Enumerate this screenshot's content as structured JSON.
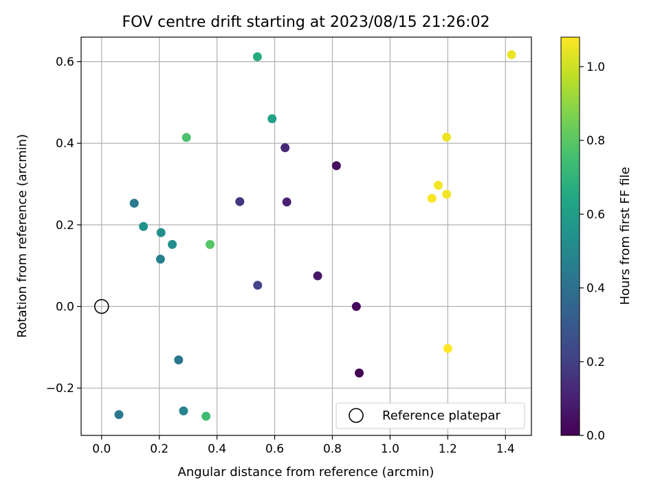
{
  "chart_data": {
    "type": "scatter",
    "title": "FOV centre drift starting at 2023/08/15 21:26:02",
    "xlabel": "Angular distance from reference (arcmin)",
    "ylabel": "Rotation from reference (arcmin)",
    "xlim": [
      -0.071,
      1.49
    ],
    "ylim": [
      -0.316,
      0.66
    ],
    "xticks": [
      0.0,
      0.2,
      0.4,
      0.6,
      0.8,
      1.0,
      1.2,
      1.4
    ],
    "xtick_labels": [
      "0.0",
      "0.2",
      "0.4",
      "0.6",
      "0.8",
      "1.0",
      "1.2",
      "1.4"
    ],
    "yticks": [
      -0.2,
      0.0,
      0.2,
      0.4,
      0.6
    ],
    "ytick_labels": [
      "−0.2",
      "0.0",
      "0.2",
      "0.4",
      "0.6"
    ],
    "grid": true,
    "colormap": "viridis",
    "colorbar": {
      "label": "Hours from first FF file",
      "range": [
        0.0,
        1.08
      ],
      "ticks": [
        0.0,
        0.2,
        0.4,
        0.6,
        0.8,
        1.0
      ],
      "tick_labels": [
        "0.0",
        "0.2",
        "0.4",
        "0.6",
        "0.8",
        "1.0"
      ]
    },
    "reference_point": {
      "x": 0.0,
      "y": 0.0
    },
    "legend": {
      "placement": "lower-right",
      "entries": [
        "Reference platepar"
      ]
    },
    "points": [
      {
        "x": 0.893,
        "y": -0.163,
        "c": 0.0
      },
      {
        "x": 0.883,
        "y": 0.0,
        "c": 0.02
      },
      {
        "x": 0.814,
        "y": 0.345,
        "c": 0.04
      },
      {
        "x": 0.749,
        "y": 0.075,
        "c": 0.07
      },
      {
        "x": 0.642,
        "y": 0.256,
        "c": 0.1
      },
      {
        "x": 0.636,
        "y": 0.389,
        "c": 0.12
      },
      {
        "x": 0.479,
        "y": 0.257,
        "c": 0.17
      },
      {
        "x": 0.541,
        "y": 0.052,
        "c": 0.22
      },
      {
        "x": 0.267,
        "y": -0.131,
        "c": 0.42
      },
      {
        "x": 0.06,
        "y": -0.265,
        "c": 0.43
      },
      {
        "x": 0.113,
        "y": 0.253,
        "c": 0.44
      },
      {
        "x": 0.204,
        "y": 0.116,
        "c": 0.47
      },
      {
        "x": 0.284,
        "y": -0.256,
        "c": 0.48
      },
      {
        "x": 0.245,
        "y": 0.152,
        "c": 0.52
      },
      {
        "x": 0.206,
        "y": 0.181,
        "c": 0.53
      },
      {
        "x": 0.145,
        "y": 0.196,
        "c": 0.55
      },
      {
        "x": 0.591,
        "y": 0.46,
        "c": 0.62
      },
      {
        "x": 0.54,
        "y": 0.612,
        "c": 0.66
      },
      {
        "x": 0.362,
        "y": -0.269,
        "c": 0.74
      },
      {
        "x": 0.294,
        "y": 0.414,
        "c": 0.77
      },
      {
        "x": 0.376,
        "y": 0.152,
        "c": 0.79
      },
      {
        "x": 1.421,
        "y": 0.617,
        "c": 1.05
      },
      {
        "x": 1.196,
        "y": 0.415,
        "c": 1.05
      },
      {
        "x": 1.167,
        "y": 0.297,
        "c": 1.06
      },
      {
        "x": 1.196,
        "y": 0.275,
        "c": 1.06
      },
      {
        "x": 1.145,
        "y": 0.265,
        "c": 1.07
      },
      {
        "x": 1.2,
        "y": -0.103,
        "c": 1.08
      }
    ]
  }
}
